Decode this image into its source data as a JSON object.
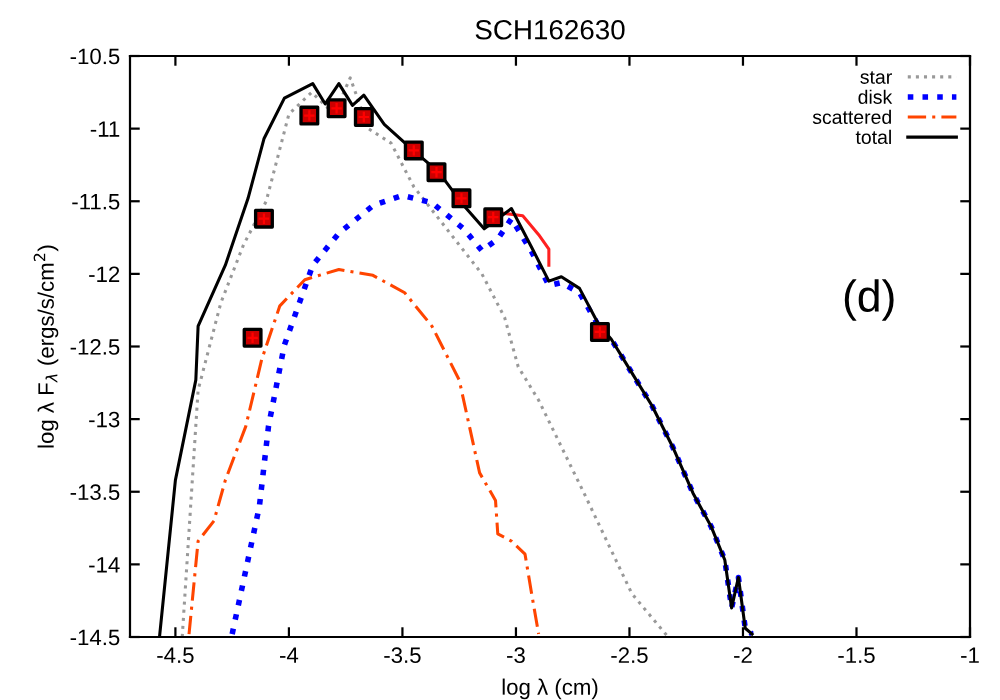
{
  "chart_data": {
    "type": "line",
    "title": "SCH162630",
    "xlabel": "log λ (cm)",
    "ylabel": "log λ F$_{λ}$ (ergs/s/cm$^{2}$)",
    "xlim": [
      -4.7,
      -1
    ],
    "ylim": [
      -14.5,
      -10.5
    ],
    "xticks": [
      -4.5,
      -4,
      -3.5,
      -3,
      -2.5,
      -2,
      -1.5,
      -1
    ],
    "yticks": [
      -14.5,
      -14,
      -13.5,
      -13,
      -12.5,
      -12,
      -11.5,
      -11,
      -10.5
    ],
    "grid": false,
    "legend": "top right",
    "annotations": [
      "(d)"
    ],
    "series": [
      {
        "name": "star",
        "color": "#999999",
        "line_style": "dotted",
        "x": [
          -4.47,
          -4.4,
          -4.3,
          -4.2,
          -4.1,
          -4.0,
          -3.9,
          -3.8,
          -3.73,
          -3.65,
          -3.55,
          -3.45,
          -3.35,
          -3.25,
          -3.15,
          -3.05,
          -2.99,
          -2.9,
          -2.7,
          -2.49,
          -2.33
        ],
        "values": [
          -14.5,
          -12.8,
          -12.2,
          -11.8,
          -11.5,
          -10.9,
          -10.75,
          -10.9,
          -10.65,
          -11.0,
          -11.1,
          -11.4,
          -11.6,
          -11.8,
          -12.0,
          -12.3,
          -12.64,
          -12.87,
          -13.51,
          -14.2,
          -14.5
        ]
      },
      {
        "name": "disk",
        "color": "#0000ff",
        "line_style": "dotted",
        "x": [
          -4.25,
          -4.13,
          -4.09,
          -4.02,
          -3.895,
          -3.78,
          -3.63,
          -3.5,
          -3.37,
          -3.23,
          -3.15,
          -3.08,
          -3.02,
          -2.93,
          -2.855,
          -2.8,
          -2.72,
          -2.635,
          -2.58,
          -2.49,
          -2.4,
          -2.31,
          -2.22,
          -2.14,
          -2.08,
          -2.05,
          -2.02,
          -1.99,
          -1.96
        ],
        "values": [
          -14.48,
          -13.6,
          -13.05,
          -12.49,
          -11.94,
          -11.72,
          -11.53,
          -11.46,
          -11.51,
          -11.69,
          -11.84,
          -11.76,
          -11.62,
          -11.85,
          -12.08,
          -12.06,
          -12.13,
          -12.36,
          -12.45,
          -12.68,
          -12.91,
          -13.19,
          -13.51,
          -13.74,
          -13.97,
          -14.3,
          -14.09,
          -14.44,
          -14.48
        ]
      },
      {
        "name": "scattered",
        "color": "#ff4500",
        "line_style": "dashed",
        "x": [
          -4.44,
          -4.4,
          -4.33,
          -4.28,
          -4.19,
          -4.12,
          -4.04,
          -3.93,
          -3.78,
          -3.63,
          -3.49,
          -3.37,
          -3.25,
          -3.16,
          -3.09,
          -3.08,
          -3.02,
          -2.96,
          -2.93,
          -2.9
        ],
        "values": [
          -14.48,
          -13.84,
          -13.7,
          -13.42,
          -13.05,
          -12.59,
          -12.22,
          -12.04,
          -11.97,
          -12.01,
          -12.13,
          -12.36,
          -12.73,
          -13.37,
          -13.56,
          -13.79,
          -13.84,
          -13.93,
          -14.21,
          -14.48
        ]
      },
      {
        "color": "#ff2020",
        "line_style": "solid",
        "x": [
          -3.07,
          -2.97,
          -2.9,
          -2.855,
          -2.855
        ],
        "values": [
          -11.58,
          -11.6,
          -11.73,
          -11.83,
          -11.94
        ]
      },
      {
        "name": "total",
        "color": "#000000",
        "line_style": "solid",
        "x": [
          -4.57,
          -4.5,
          -4.41,
          -4.4,
          -4.28,
          -4.18,
          -4.11,
          -4.02,
          -3.895,
          -3.84,
          -3.78,
          -3.72,
          -3.67,
          -3.58,
          -3.46,
          -3.34,
          -3.23,
          -3.14,
          -3.08,
          -3.02,
          -2.93,
          -2.855,
          -2.8,
          -2.72,
          -2.635,
          -2.58,
          -2.49,
          -2.4,
          -2.31,
          -2.22,
          -2.14,
          -2.08,
          -2.05,
          -2.02,
          -1.99,
          -1.96
        ],
        "values": [
          -14.5,
          -13.42,
          -12.73,
          -12.36,
          -11.94,
          -11.48,
          -11.07,
          -10.79,
          -10.69,
          -10.83,
          -10.69,
          -10.84,
          -10.77,
          -10.97,
          -11.14,
          -11.3,
          -11.53,
          -11.69,
          -11.62,
          -11.55,
          -11.82,
          -12.05,
          -12.02,
          -12.1,
          -12.35,
          -12.45,
          -12.68,
          -12.91,
          -13.19,
          -13.51,
          -13.74,
          -13.97,
          -14.3,
          -14.09,
          -14.44,
          -14.48
        ]
      },
      {
        "type": "scatter",
        "color": "#cc0000",
        "marker": "square",
        "x": [
          -4.16,
          -4.11,
          -3.91,
          -3.79,
          -3.67,
          -3.45,
          -3.35,
          -3.24,
          -3.1,
          -2.63
        ],
        "values": [
          -12.44,
          -11.62,
          -10.91,
          -10.86,
          -10.92,
          -11.15,
          -11.3,
          -11.48,
          -11.61,
          -12.4
        ]
      }
    ]
  }
}
